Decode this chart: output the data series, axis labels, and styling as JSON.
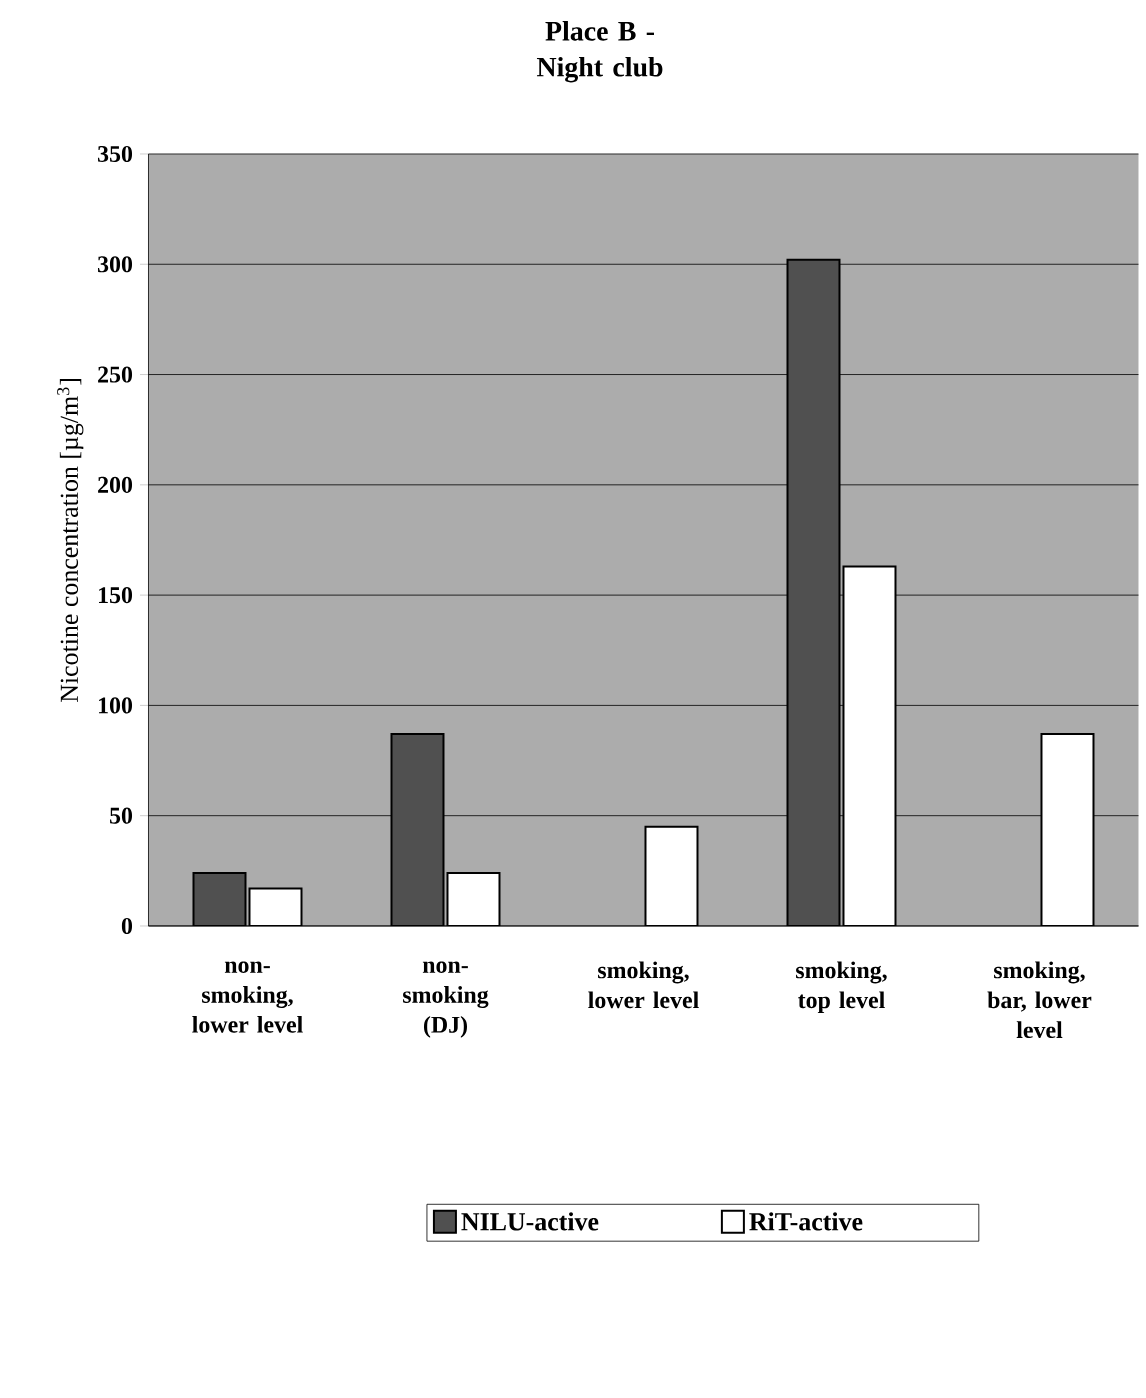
{
  "chart_data": {
    "type": "bar",
    "title": "Place B - Night club",
    "ylabel": "Nicotine concentration [µg/m$^{3}$]",
    "categories": [
      "non-smoking, lower level",
      "non-smoking (DJ)",
      "smoking, lower level",
      "smoking, top level",
      "smoking, bar, lower level"
    ],
    "series": [
      {
        "name": "NILU-active",
        "color": "#505050",
        "values": [
          24,
          87,
          null,
          302,
          null
        ]
      },
      {
        "name": "RiT-active",
        "color": "#ffffff",
        "values": [
          17,
          24,
          45,
          163,
          87
        ]
      }
    ],
    "ylim": [
      0,
      350
    ],
    "yticks": [
      0,
      50,
      100,
      150,
      200,
      250,
      300,
      350
    ],
    "grid": "y",
    "legend": "bottom"
  }
}
